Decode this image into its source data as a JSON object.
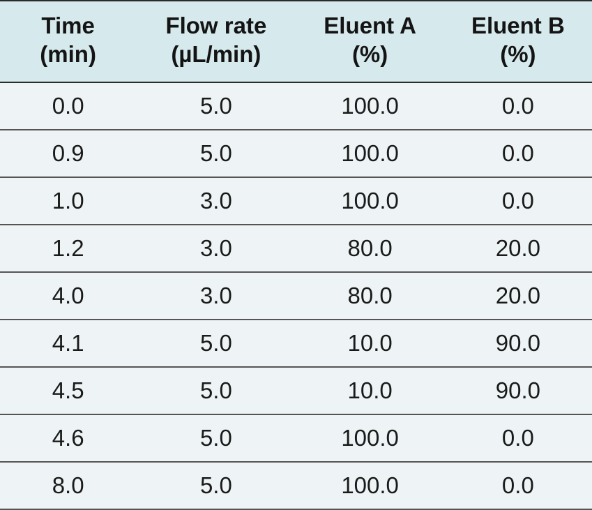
{
  "table": {
    "type": "table",
    "background_color": "#e7f0f1",
    "header_background": "#d6e9ec",
    "body_background": "#eef4f5",
    "border_color": "#2b2b2b",
    "row_border_color": "#555555",
    "text_color": "#1a1a1a",
    "header_fontsize": 33,
    "body_fontsize": 33,
    "header_fontweight": 700,
    "body_fontweight": 400,
    "column_widths_pct": [
      23,
      27,
      25,
      25
    ],
    "columns": [
      {
        "line1": "Time",
        "line2": "(min)"
      },
      {
        "line1": "Flow rate",
        "line2": "(µL/min)"
      },
      {
        "line1": "Eluent A",
        "line2": "(%)"
      },
      {
        "line1": "Eluent B",
        "line2": "(%)"
      }
    ],
    "rows": [
      [
        "0.0",
        "5.0",
        "100.0",
        "0.0"
      ],
      [
        "0.9",
        "5.0",
        "100.0",
        "0.0"
      ],
      [
        "1.0",
        "3.0",
        "100.0",
        "0.0"
      ],
      [
        "1.2",
        "3.0",
        "80.0",
        "20.0"
      ],
      [
        "4.0",
        "3.0",
        "80.0",
        "20.0"
      ],
      [
        "4.1",
        "5.0",
        "10.0",
        "90.0"
      ],
      [
        "4.5",
        "5.0",
        "10.0",
        "90.0"
      ],
      [
        "4.6",
        "5.0",
        "100.0",
        "0.0"
      ],
      [
        "8.0",
        "5.0",
        "100.0",
        "0.0"
      ]
    ]
  }
}
